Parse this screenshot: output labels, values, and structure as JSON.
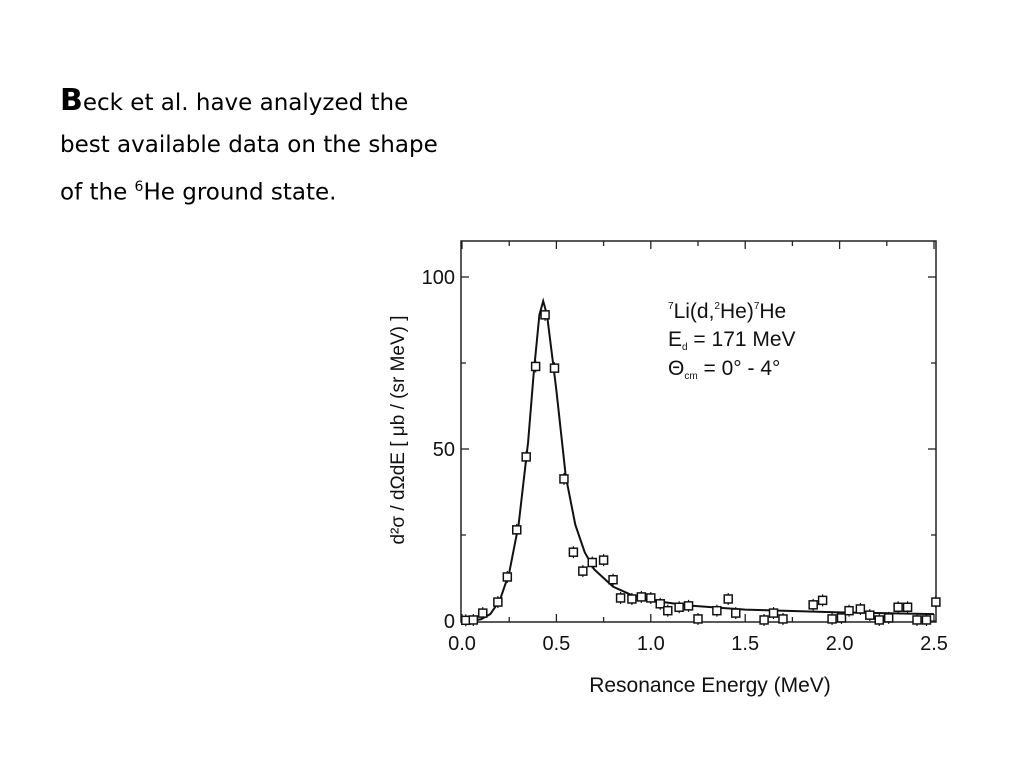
{
  "slide": {
    "intro_initial": "B",
    "intro_line1": "eck et al. have analyzed the",
    "intro_line2": "best available data on the shape",
    "intro_line3_pre": "of the ",
    "intro_sup": "6",
    "intro_line3_post": "He ground state."
  },
  "chart_data": {
    "type": "scatter",
    "title": "",
    "xlabel": "Resonance Energy (MeV)",
    "ylabel": "d²σ / dΩdE [ μb / (sr MeV) ]",
    "xlim": [
      0,
      2.5
    ],
    "ylim": [
      0,
      110
    ],
    "xticks": [
      "0.0",
      "0.5",
      "1.0",
      "1.5",
      "2.0",
      "2.5"
    ],
    "yticks": [
      "0",
      "50",
      "100"
    ],
    "annotation": {
      "reaction_sup1": "7",
      "reaction_a": "Li(d,",
      "reaction_sup2": "2",
      "reaction_b": "He)",
      "reaction_sup3": "7",
      "reaction_c": "He",
      "energy_main": "E",
      "energy_sub": "d",
      "energy_rest": " = 171 MeV",
      "angle_main": "Θ",
      "angle_sub": "cm",
      "angle_rest": " = 0° - 4°"
    },
    "series": [
      {
        "name": "data",
        "marker": "open-square",
        "x": [
          0.02,
          0.06,
          0.11,
          0.19,
          0.24,
          0.29,
          0.34,
          0.39,
          0.44,
          0.49,
          0.54,
          0.59,
          0.64,
          0.69,
          0.75,
          0.8,
          0.84,
          0.9,
          0.95,
          1.0,
          1.05,
          1.09,
          1.15,
          1.2,
          1.25,
          1.35,
          1.41,
          1.45,
          1.6,
          1.65,
          1.7,
          1.86,
          1.91,
          1.96,
          2.01,
          2.05,
          2.11,
          2.16,
          2.21,
          2.26,
          2.31,
          2.36,
          2.41,
          2.46,
          2.51
        ],
        "y": [
          0.2,
          0.3,
          2.3,
          5.5,
          12.8,
          26.5,
          47.7,
          74,
          89,
          73.5,
          41.3,
          20,
          14.5,
          17,
          17.7,
          12,
          6.7,
          6.4,
          7,
          6.7,
          5,
          3,
          4,
          4.4,
          0.6,
          3,
          6.4,
          2.3,
          0.3,
          2.3,
          0.6,
          4.7,
          6,
          0.6,
          0.9,
          3,
          3.5,
          1.7,
          0.3,
          0.9,
          4,
          4,
          0.3,
          0.3,
          5.5
        ]
      },
      {
        "name": "fit",
        "marker": "line",
        "x": [
          0.0,
          0.05,
          0.1,
          0.15,
          0.2,
          0.25,
          0.3,
          0.35,
          0.38,
          0.41,
          0.43,
          0.45,
          0.48,
          0.5,
          0.55,
          0.6,
          0.65,
          0.7,
          0.8,
          0.9,
          1.0,
          1.2,
          1.5,
          2.0,
          2.5
        ],
        "y": [
          0,
          0.1,
          0.5,
          2,
          6,
          14,
          28,
          52,
          72,
          89,
          93,
          89,
          76,
          67,
          42,
          28,
          20,
          15,
          10,
          7.5,
          6,
          4.5,
          3.3,
          2.5,
          2
        ]
      }
    ]
  }
}
